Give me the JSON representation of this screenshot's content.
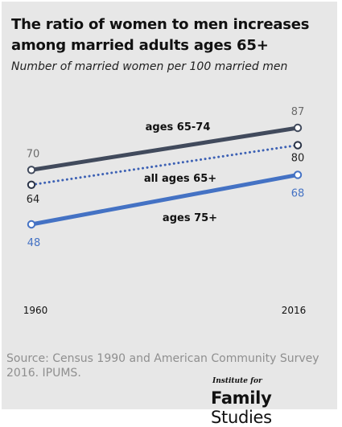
{
  "chart_data": {
    "type": "line",
    "title": "The ratio of women to men increases among married adults ages 65+",
    "subtitle": "Number of married women per 100 married men",
    "x": [
      "1960",
      "2016"
    ],
    "ylim": [
      40,
      90
    ],
    "grid": false,
    "legend": "inline labels",
    "series": [
      {
        "name": "ages 65-74",
        "values": [
          70,
          87
        ],
        "color": "#414a5c",
        "style": "solid",
        "labels": [
          "70",
          "87"
        ],
        "label_color": "#6b6b6b"
      },
      {
        "name": "all ages 65+",
        "values": [
          64,
          80
        ],
        "color": "#3d61b4",
        "style": "dotted",
        "labels": [
          "64",
          "80"
        ],
        "label_color": "#222222"
      },
      {
        "name": "ages 75+",
        "values": [
          48,
          68
        ],
        "color": "#4472c4",
        "style": "solid",
        "labels": [
          "48",
          "68"
        ],
        "label_color": "#4472c4"
      }
    ]
  },
  "source": "Source: Census 1990 and American Community Survey 2016. IPUMS.",
  "brand": {
    "top": "Institute for",
    "word1": "Family",
    "word2": "Studies"
  }
}
